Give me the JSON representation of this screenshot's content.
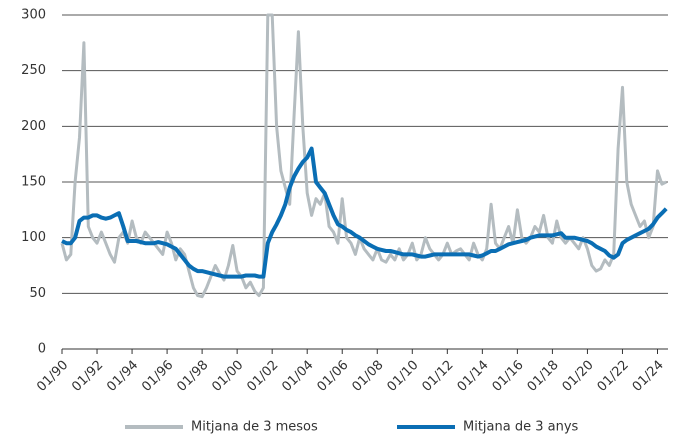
{
  "chart_data": {
    "type": "line",
    "x": [
      1990,
      1990.25,
      1990.5,
      1990.75,
      1991,
      1991.25,
      1991.5,
      1991.75,
      1992,
      1992.25,
      1992.5,
      1992.75,
      1993,
      1993.25,
      1993.5,
      1993.75,
      1994,
      1994.25,
      1994.5,
      1994.75,
      1995,
      1995.25,
      1995.5,
      1995.75,
      1996,
      1996.25,
      1996.5,
      1996.75,
      1997,
      1997.25,
      1997.5,
      1997.75,
      1998,
      1998.25,
      1998.5,
      1998.75,
      1999,
      1999.25,
      1999.5,
      1999.75,
      2000,
      2000.25,
      2000.5,
      2000.75,
      2001,
      2001.25,
      2001.5,
      2001.75,
      2002,
      2002.25,
      2002.5,
      2002.75,
      2003,
      2003.25,
      2003.5,
      2003.75,
      2004,
      2004.25,
      2004.5,
      2004.75,
      2005,
      2005.25,
      2005.5,
      2005.75,
      2006,
      2006.25,
      2006.5,
      2006.75,
      2007,
      2007.25,
      2007.5,
      2007.75,
      2008,
      2008.25,
      2008.5,
      2008.75,
      2009,
      2009.25,
      2009.5,
      2009.75,
      2010,
      2010.25,
      2010.5,
      2010.75,
      2011,
      2011.25,
      2011.5,
      2011.75,
      2012,
      2012.25,
      2012.5,
      2012.75,
      2013,
      2013.25,
      2013.5,
      2013.75,
      2014,
      2014.25,
      2014.5,
      2014.75,
      2015,
      2015.25,
      2015.5,
      2015.75,
      2016,
      2016.25,
      2016.5,
      2016.75,
      2017,
      2017.25,
      2017.5,
      2017.75,
      2018,
      2018.25,
      2018.5,
      2018.75,
      2019,
      2019.25,
      2019.5,
      2019.75,
      2020,
      2020.25,
      2020.5,
      2020.75,
      2021,
      2021.25,
      2021.5,
      2021.75,
      2022,
      2022.25,
      2022.5,
      2022.75,
      2023,
      2023.25,
      2023.5,
      2023.75,
      2024,
      2024.25,
      2024.5
    ],
    "series": [
      {
        "name": "Mitjana de 3 mesos",
        "color": "#b4bcc0",
        "values": [
          95,
          80,
          85,
          150,
          190,
          275,
          110,
          100,
          95,
          105,
          95,
          85,
          78,
          100,
          105,
          95,
          115,
          100,
          95,
          105,
          100,
          95,
          90,
          85,
          105,
          95,
          80,
          90,
          85,
          70,
          55,
          48,
          47,
          55,
          65,
          75,
          68,
          62,
          75,
          93,
          70,
          65,
          55,
          60,
          52,
          48,
          55,
          300,
          300,
          200,
          160,
          145,
          130,
          210,
          285,
          200,
          140,
          120,
          135,
          130,
          140,
          110,
          105,
          95,
          135,
          100,
          95,
          85,
          100,
          90,
          85,
          80,
          90,
          80,
          78,
          85,
          80,
          90,
          80,
          85,
          95,
          80,
          85,
          100,
          90,
          85,
          80,
          85,
          95,
          85,
          88,
          90,
          85,
          80,
          95,
          85,
          80,
          90,
          130,
          95,
          90,
          100,
          110,
          95,
          125,
          100,
          95,
          100,
          110,
          105,
          120,
          100,
          95,
          115,
          100,
          95,
          100,
          95,
          90,
          100,
          90,
          75,
          70,
          72,
          80,
          75,
          85,
          180,
          235,
          150,
          130,
          120,
          110,
          115,
          100,
          110,
          160,
          148,
          150
        ]
      },
      {
        "name": "Mitjana de 3 anys",
        "color": "#0a6eb4",
        "values": [
          97,
          95,
          95,
          100,
          115,
          118,
          118,
          120,
          120,
          118,
          117,
          118,
          120,
          122,
          110,
          97,
          97,
          97,
          96,
          95,
          95,
          95,
          96,
          95,
          94,
          92,
          90,
          85,
          80,
          75,
          72,
          70,
          70,
          69,
          68,
          67,
          66,
          65,
          65,
          65,
          65,
          65,
          66,
          66,
          66,
          65,
          65,
          95,
          105,
          112,
          120,
          130,
          145,
          155,
          162,
          168,
          172,
          180,
          150,
          145,
          140,
          130,
          120,
          112,
          110,
          107,
          105,
          102,
          100,
          97,
          94,
          92,
          90,
          89,
          88,
          88,
          87,
          86,
          85,
          85,
          85,
          84,
          83,
          83,
          84,
          85,
          85,
          85,
          85,
          85,
          85,
          85,
          85,
          85,
          84,
          83,
          84,
          86,
          88,
          88,
          90,
          92,
          94,
          95,
          96,
          97,
          98,
          100,
          101,
          102,
          102,
          102,
          102,
          103,
          104,
          100,
          100,
          100,
          99,
          98,
          97,
          95,
          92,
          90,
          88,
          84,
          82,
          85,
          95,
          98,
          100,
          102,
          104,
          106,
          108,
          112,
          118,
          122,
          126
        ]
      }
    ],
    "xlim": [
      1990,
      2024.6
    ],
    "xticks": [
      {
        "value": 1990,
        "label": "01/90"
      },
      {
        "value": 1992,
        "label": "01/92"
      },
      {
        "value": 1994,
        "label": "01/94"
      },
      {
        "value": 1996,
        "label": "01/96"
      },
      {
        "value": 1998,
        "label": "01/98"
      },
      {
        "value": 2000,
        "label": "01/00"
      },
      {
        "value": 2002,
        "label": "01/02"
      },
      {
        "value": 2004,
        "label": "01/04"
      },
      {
        "value": 2006,
        "label": "01/06"
      },
      {
        "value": 2008,
        "label": "01/08"
      },
      {
        "value": 2010,
        "label": "01/10"
      },
      {
        "value": 2012,
        "label": "01/12"
      },
      {
        "value": 2014,
        "label": "01/14"
      },
      {
        "value": 2016,
        "label": "01/16"
      },
      {
        "value": 2018,
        "label": "01/18"
      },
      {
        "value": 2020,
        "label": "01/20"
      },
      {
        "value": 2022,
        "label": "01/22"
      },
      {
        "value": 2024,
        "label": "01/24"
      }
    ],
    "ylim": [
      0,
      300
    ],
    "yticks": [
      0,
      50,
      100,
      150,
      200,
      250,
      300
    ],
    "grid": true
  }
}
